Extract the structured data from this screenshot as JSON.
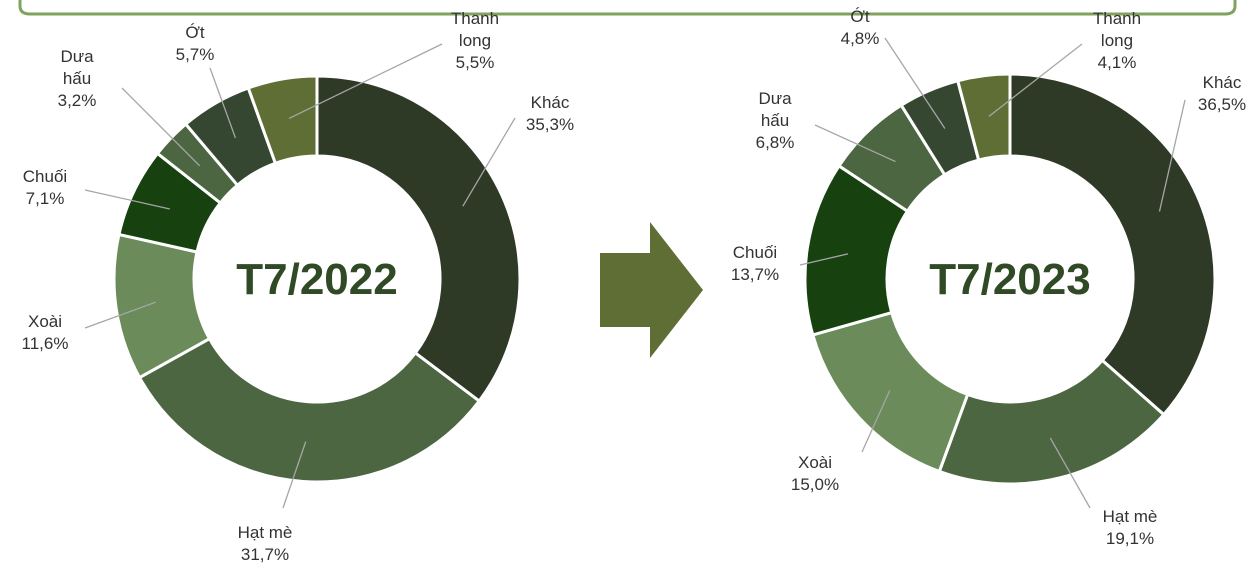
{
  "chart_data": [
    {
      "type": "pie",
      "donut": true,
      "center_label": "T7/2022",
      "categories": [
        "Khác",
        "Hạt mè",
        "Xoài",
        "Chuối",
        "Dưa hấu",
        "Ớt",
        "Thanh long"
      ],
      "values": [
        35.3,
        31.7,
        11.6,
        7.1,
        3.2,
        5.7,
        5.5
      ],
      "value_labels": [
        "35,3%",
        "31,7%",
        "11,6%",
        "7,1%",
        "3,2%",
        "5,7%",
        "5,5%"
      ],
      "colors": [
        "#2f3a26",
        "#4b6641",
        "#6b8c5a",
        "#17420f",
        "#4b6641",
        "#354631",
        "#5f6e35"
      ]
    },
    {
      "type": "pie",
      "donut": true,
      "center_label": "T7/2023",
      "categories": [
        "Khác",
        "Hạt mè",
        "Xoài",
        "Chuối",
        "Dưa hấu",
        "Ớt",
        "Thanh long"
      ],
      "values": [
        36.5,
        19.1,
        15.0,
        13.7,
        6.8,
        4.8,
        4.1
      ],
      "value_labels": [
        "36,5%",
        "19,1%",
        "15,0%",
        "13,7%",
        "6,8%",
        "4,8%",
        "4,1%"
      ],
      "colors": [
        "#2f3a26",
        "#4b6641",
        "#6b8c5a",
        "#17420f",
        "#4b6641",
        "#354631",
        "#5f6e35"
      ]
    }
  ]
}
